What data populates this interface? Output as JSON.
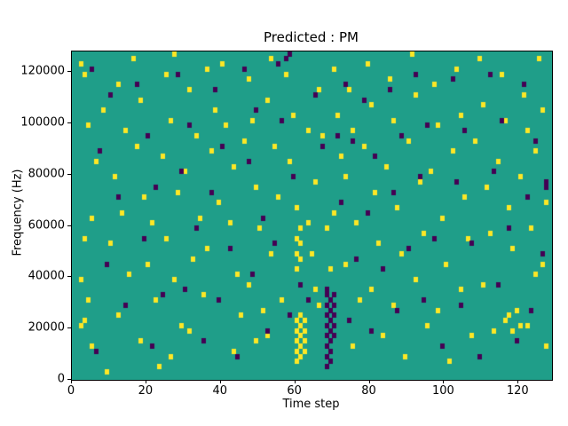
{
  "chart_data": {
    "type": "heatmap",
    "title": "Predicted : PM",
    "xlabel": "Time step",
    "ylabel": "Frequency (Hz)",
    "x_range": [
      0,
      129
    ],
    "y_range": [
      0,
      128000
    ],
    "x_ticks": [
      0,
      20,
      40,
      60,
      80,
      100,
      120
    ],
    "y_ticks": [
      0,
      20000,
      40000,
      60000,
      80000,
      100000,
      120000
    ],
    "grid": {
      "cols": 129,
      "rows": 64
    },
    "colors": {
      "background": "#1f9e89",
      "high": "#fde725",
      "low": "#440154"
    },
    "legend": "none",
    "note": "cells are [time_step, freq_khz]; high = yellow cells, low = dark purple cells",
    "cells_high": [
      [
        2,
        122
      ],
      [
        3,
        118
      ],
      [
        8,
        105
      ],
      [
        4,
        99
      ],
      [
        6,
        84
      ],
      [
        5,
        62
      ],
      [
        3,
        55
      ],
      [
        2,
        38
      ],
      [
        4,
        30
      ],
      [
        3,
        22
      ],
      [
        2,
        20
      ],
      [
        5,
        12
      ],
      [
        9,
        3
      ],
      [
        12,
        115
      ],
      [
        14,
        96
      ],
      [
        11,
        78
      ],
      [
        13,
        65
      ],
      [
        10,
        52
      ],
      [
        15,
        40
      ],
      [
        12,
        25
      ],
      [
        16,
        124
      ],
      [
        18,
        108
      ],
      [
        17,
        90
      ],
      [
        19,
        70
      ],
      [
        21,
        60
      ],
      [
        20,
        44
      ],
      [
        22,
        30
      ],
      [
        18,
        15
      ],
      [
        23,
        5
      ],
      [
        25,
        118
      ],
      [
        27,
        127
      ],
      [
        26,
        100
      ],
      [
        24,
        86
      ],
      [
        28,
        72
      ],
      [
        25,
        55
      ],
      [
        27,
        38
      ],
      [
        29,
        20
      ],
      [
        26,
        8
      ],
      [
        31,
        112
      ],
      [
        33,
        95
      ],
      [
        30,
        80
      ],
      [
        34,
        63
      ],
      [
        32,
        47
      ],
      [
        35,
        33
      ],
      [
        31,
        18
      ],
      [
        36,
        121
      ],
      [
        38,
        104
      ],
      [
        37,
        88
      ],
      [
        39,
        68
      ],
      [
        36,
        50
      ],
      [
        40,
        122
      ],
      [
        41,
        99
      ],
      [
        43,
        82
      ],
      [
        42,
        60
      ],
      [
        44,
        41
      ],
      [
        45,
        24
      ],
      [
        43,
        10
      ],
      [
        47,
        116
      ],
      [
        48,
        101
      ],
      [
        46,
        92
      ],
      [
        49,
        75
      ],
      [
        50,
        58
      ],
      [
        47,
        36
      ],
      [
        51,
        27
      ],
      [
        49,
        14
      ],
      [
        53,
        125
      ],
      [
        52,
        108
      ],
      [
        54,
        90
      ],
      [
        55,
        71
      ],
      [
        53,
        49
      ],
      [
        56,
        31
      ],
      [
        52,
        16
      ],
      [
        57,
        119
      ],
      [
        59,
        103
      ],
      [
        58,
        85
      ],
      [
        60,
        66
      ],
      [
        61,
        58
      ],
      [
        60,
        55
      ],
      [
        61,
        52
      ],
      [
        60,
        49
      ],
      [
        61,
        46
      ],
      [
        60,
        43
      ],
      [
        61,
        24
      ],
      [
        60,
        22
      ],
      [
        61,
        20
      ],
      [
        60,
        18
      ],
      [
        61,
        16
      ],
      [
        60,
        14
      ],
      [
        61,
        12
      ],
      [
        60,
        10
      ],
      [
        61,
        8
      ],
      [
        60,
        6
      ],
      [
        62,
        23
      ],
      [
        62,
        19
      ],
      [
        62,
        15
      ],
      [
        62,
        11
      ],
      [
        63,
        60
      ],
      [
        64,
        48
      ],
      [
        65,
        35
      ],
      [
        63,
        97
      ],
      [
        66,
        113
      ],
      [
        67,
        94
      ],
      [
        65,
        76
      ],
      [
        68,
        59
      ],
      [
        69,
        42
      ],
      [
        66,
        28
      ],
      [
        70,
        120
      ],
      [
        71,
        102
      ],
      [
        72,
        87
      ],
      [
        70,
        64
      ],
      [
        73,
        45
      ],
      [
        74,
        112
      ],
      [
        75,
        97
      ],
      [
        73,
        79
      ],
      [
        76,
        61
      ],
      [
        77,
        30
      ],
      [
        75,
        12
      ],
      [
        79,
        123
      ],
      [
        80,
        106
      ],
      [
        78,
        91
      ],
      [
        81,
        73
      ],
      [
        82,
        52
      ],
      [
        80,
        34
      ],
      [
        83,
        17
      ],
      [
        85,
        117
      ],
      [
        86,
        100
      ],
      [
        84,
        83
      ],
      [
        87,
        66
      ],
      [
        88,
        48
      ],
      [
        86,
        29
      ],
      [
        89,
        9
      ],
      [
        91,
        126
      ],
      [
        92,
        110
      ],
      [
        90,
        93
      ],
      [
        93,
        77
      ],
      [
        94,
        57
      ],
      [
        92,
        39
      ],
      [
        95,
        21
      ],
      [
        97,
        114
      ],
      [
        98,
        98
      ],
      [
        96,
        81
      ],
      [
        99,
        62
      ],
      [
        100,
        45
      ],
      [
        98,
        26
      ],
      [
        101,
        7
      ],
      [
        103,
        121
      ],
      [
        104,
        103
      ],
      [
        102,
        89
      ],
      [
        105,
        70
      ],
      [
        106,
        54
      ],
      [
        104,
        35
      ],
      [
        107,
        16
      ],
      [
        109,
        125
      ],
      [
        110,
        107
      ],
      [
        108,
        92
      ],
      [
        111,
        74
      ],
      [
        112,
        56
      ],
      [
        110,
        37
      ],
      [
        113,
        19
      ],
      [
        115,
        118
      ],
      [
        116,
        101
      ],
      [
        114,
        85
      ],
      [
        117,
        67
      ],
      [
        118,
        50
      ],
      [
        116,
        22
      ],
      [
        119,
        27
      ],
      [
        117,
        24
      ],
      [
        120,
        21
      ],
      [
        118,
        18
      ],
      [
        121,
        111
      ],
      [
        122,
        96
      ],
      [
        120,
        78
      ],
      [
        123,
        59
      ],
      [
        124,
        40
      ],
      [
        122,
        20
      ],
      [
        125,
        124
      ],
      [
        126,
        105
      ],
      [
        124,
        88
      ],
      [
        127,
        69
      ],
      [
        126,
        44
      ],
      [
        127,
        13
      ]
    ],
    "cells_low": [
      [
        5,
        120
      ],
      [
        10,
        110
      ],
      [
        7,
        88
      ],
      [
        12,
        70
      ],
      [
        9,
        45
      ],
      [
        14,
        28
      ],
      [
        6,
        10
      ],
      [
        17,
        115
      ],
      [
        20,
        95
      ],
      [
        22,
        75
      ],
      [
        19,
        55
      ],
      [
        24,
        33
      ],
      [
        21,
        12
      ],
      [
        28,
        118
      ],
      [
        31,
        98
      ],
      [
        29,
        80
      ],
      [
        33,
        58
      ],
      [
        30,
        35
      ],
      [
        35,
        15
      ],
      [
        38,
        112
      ],
      [
        40,
        90
      ],
      [
        37,
        72
      ],
      [
        42,
        50
      ],
      [
        39,
        30
      ],
      [
        44,
        8
      ],
      [
        46,
        120
      ],
      [
        49,
        105
      ],
      [
        47,
        85
      ],
      [
        51,
        63
      ],
      [
        48,
        40
      ],
      [
        52,
        18
      ],
      [
        55,
        122
      ],
      [
        57,
        124
      ],
      [
        58,
        126
      ],
      [
        56,
        100
      ],
      [
        59,
        78
      ],
      [
        54,
        52
      ],
      [
        58,
        25
      ],
      [
        61,
        36
      ],
      [
        63,
        30
      ],
      [
        65,
        110
      ],
      [
        67,
        90
      ],
      [
        68,
        34
      ],
      [
        68,
        32
      ],
      [
        69,
        30
      ],
      [
        68,
        28
      ],
      [
        69,
        26
      ],
      [
        68,
        24
      ],
      [
        69,
        22
      ],
      [
        68,
        20
      ],
      [
        69,
        18
      ],
      [
        68,
        16
      ],
      [
        69,
        14
      ],
      [
        68,
        12
      ],
      [
        69,
        10
      ],
      [
        68,
        8
      ],
      [
        69,
        6
      ],
      [
        68,
        4
      ],
      [
        70,
        33
      ],
      [
        70,
        29
      ],
      [
        70,
        25
      ],
      [
        70,
        21
      ],
      [
        70,
        17
      ],
      [
        71,
        95
      ],
      [
        73,
        115
      ],
      [
        75,
        92
      ],
      [
        72,
        68
      ],
      [
        76,
        47
      ],
      [
        74,
        22
      ],
      [
        78,
        108
      ],
      [
        81,
        86
      ],
      [
        79,
        64
      ],
      [
        83,
        42
      ],
      [
        80,
        19
      ],
      [
        85,
        113
      ],
      [
        88,
        94
      ],
      [
        86,
        73
      ],
      [
        90,
        51
      ],
      [
        87,
        27
      ],
      [
        92,
        118
      ],
      [
        95,
        99
      ],
      [
        93,
        79
      ],
      [
        97,
        55
      ],
      [
        94,
        31
      ],
      [
        99,
        12
      ],
      [
        102,
        116
      ],
      [
        105,
        96
      ],
      [
        103,
        76
      ],
      [
        107,
        53
      ],
      [
        104,
        29
      ],
      [
        109,
        9
      ],
      [
        112,
        119
      ],
      [
        115,
        100
      ],
      [
        113,
        81
      ],
      [
        117,
        58
      ],
      [
        114,
        36
      ],
      [
        119,
        14
      ],
      [
        121,
        115
      ],
      [
        124,
        93
      ],
      [
        122,
        71
      ],
      [
        126,
        49
      ],
      [
        123,
        26
      ],
      [
        127,
        75
      ],
      [
        127,
        77
      ]
    ]
  }
}
